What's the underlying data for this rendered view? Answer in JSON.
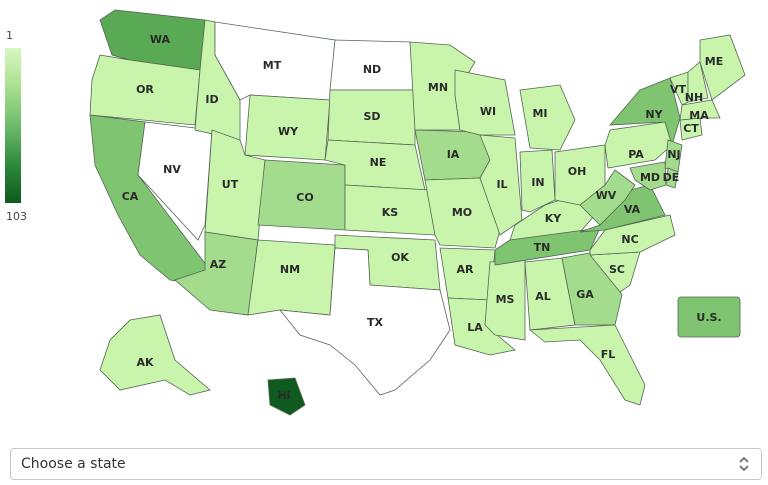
{
  "legend": {
    "min_label": "1",
    "max_label": "103",
    "min_color": "#d9f7c2",
    "max_color": "#0e5a1f"
  },
  "selector": {
    "label": "Choose a state",
    "icon": "chevron-updown-icon"
  },
  "map_data": {
    "type": "choropleth",
    "region": "United States",
    "color_scale": {
      "min": 1,
      "max": 103
    },
    "states": [
      {
        "abbr": "WA",
        "level": "high"
      },
      {
        "abbr": "OR",
        "level": "low"
      },
      {
        "abbr": "CA",
        "level": "med-high"
      },
      {
        "abbr": "NV",
        "level": "none"
      },
      {
        "abbr": "ID",
        "level": "low"
      },
      {
        "abbr": "MT",
        "level": "none"
      },
      {
        "abbr": "WY",
        "level": "low"
      },
      {
        "abbr": "UT",
        "level": "low"
      },
      {
        "abbr": "AZ",
        "level": "med"
      },
      {
        "abbr": "CO",
        "level": "med"
      },
      {
        "abbr": "NM",
        "level": "low"
      },
      {
        "abbr": "ND",
        "level": "none"
      },
      {
        "abbr": "SD",
        "level": "low"
      },
      {
        "abbr": "NE",
        "level": "low"
      },
      {
        "abbr": "KS",
        "level": "low"
      },
      {
        "abbr": "OK",
        "level": "low"
      },
      {
        "abbr": "TX",
        "level": "none"
      },
      {
        "abbr": "MN",
        "level": "low"
      },
      {
        "abbr": "IA",
        "level": "med"
      },
      {
        "abbr": "MO",
        "level": "low"
      },
      {
        "abbr": "AR",
        "level": "low"
      },
      {
        "abbr": "LA",
        "level": "low"
      },
      {
        "abbr": "WI",
        "level": "low"
      },
      {
        "abbr": "IL",
        "level": "low"
      },
      {
        "abbr": "MS",
        "level": "low"
      },
      {
        "abbr": "MI",
        "level": "low"
      },
      {
        "abbr": "IN",
        "level": "low"
      },
      {
        "abbr": "KY",
        "level": "low"
      },
      {
        "abbr": "TN",
        "level": "med-high"
      },
      {
        "abbr": "AL",
        "level": "low"
      },
      {
        "abbr": "OH",
        "level": "low"
      },
      {
        "abbr": "GA",
        "level": "med"
      },
      {
        "abbr": "FL",
        "level": "low"
      },
      {
        "abbr": "SC",
        "level": "low"
      },
      {
        "abbr": "NC",
        "level": "low"
      },
      {
        "abbr": "VA",
        "level": "med-high"
      },
      {
        "abbr": "WV",
        "level": "med"
      },
      {
        "abbr": "PA",
        "level": "low"
      },
      {
        "abbr": "NY",
        "level": "med-high"
      },
      {
        "abbr": "MD",
        "level": "med"
      },
      {
        "abbr": "DE",
        "level": "med"
      },
      {
        "abbr": "NJ",
        "level": "med"
      },
      {
        "abbr": "CT",
        "level": "low"
      },
      {
        "abbr": "MA",
        "level": "low"
      },
      {
        "abbr": "VT",
        "level": "low"
      },
      {
        "abbr": "NH",
        "level": "low"
      },
      {
        "abbr": "ME",
        "level": "low"
      },
      {
        "abbr": "AK",
        "level": "low"
      },
      {
        "abbr": "HI",
        "level": "max"
      },
      {
        "abbr": "U.S.",
        "level": "med-high"
      }
    ],
    "level_colors": {
      "none": "#ffffff",
      "low": "#c8f5ab",
      "med": "#a3dc8d",
      "med-high": "#7fc470",
      "high": "#5aa954",
      "max": "#0e5a1f"
    }
  }
}
